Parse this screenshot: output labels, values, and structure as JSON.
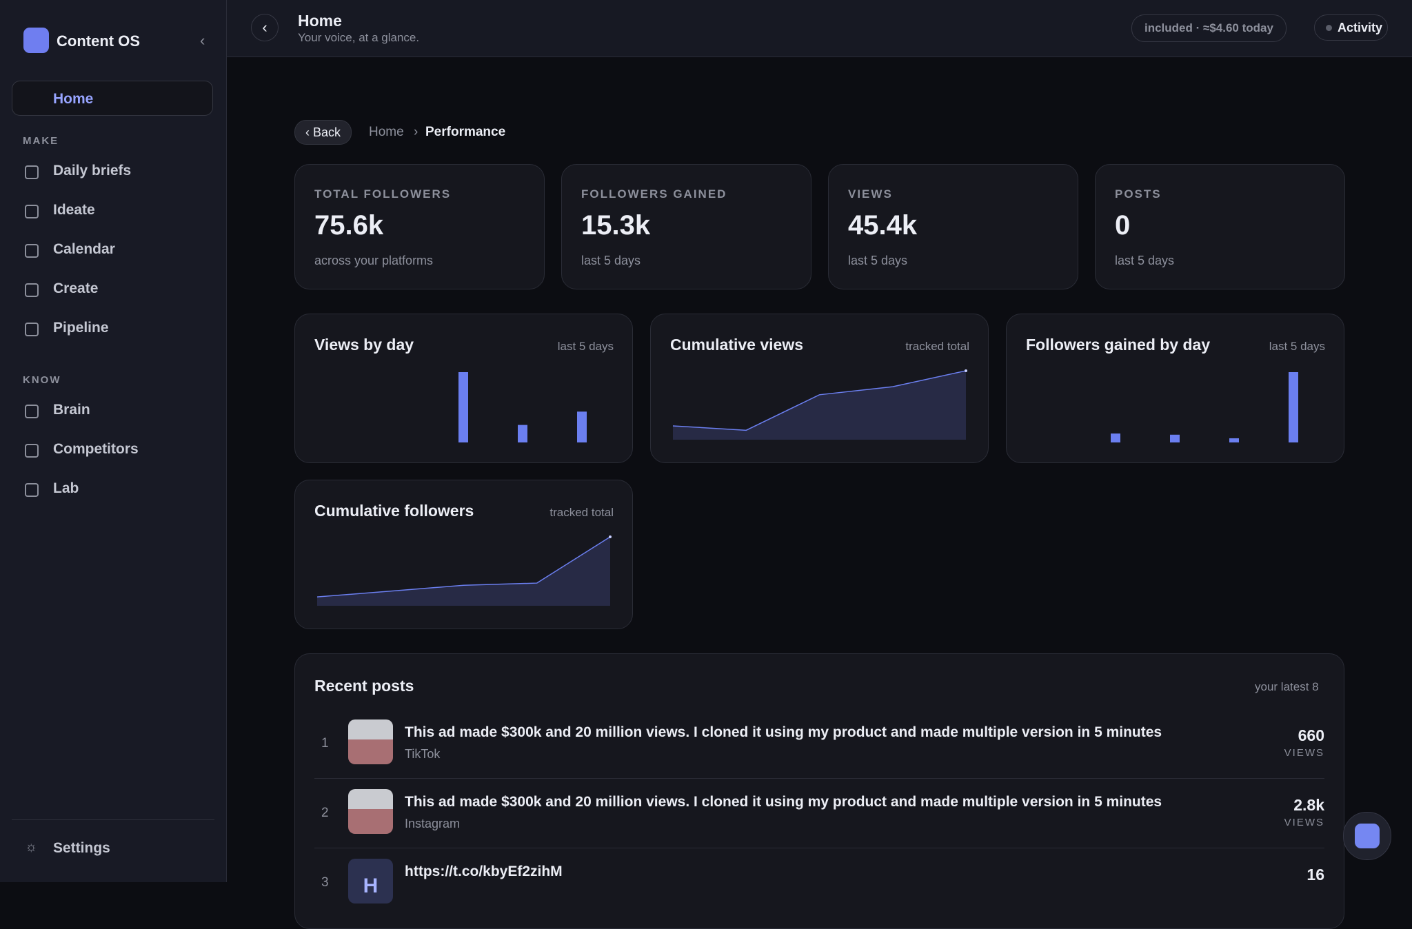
{
  "sidebar": {
    "brand": "Content OS",
    "home": "Home",
    "sections": [
      {
        "title": "MAKE",
        "items": [
          "Daily briefs",
          "Ideate",
          "Calendar",
          "Create",
          "Pipeline"
        ]
      },
      {
        "title": "KNOW",
        "items": [
          "Brain",
          "Competitors",
          "Lab"
        ]
      }
    ],
    "settings": "Settings"
  },
  "header": {
    "title": "Home",
    "subtitle": "Your voice, at a glance.",
    "usage": "included · ≈$4.60 today",
    "activity": "Activity"
  },
  "breadcrumb": {
    "back": "‹ Back",
    "home": "Home",
    "current": "Performance"
  },
  "stats": [
    {
      "label": "TOTAL FOLLOWERS",
      "value": "75.6k",
      "note": "across your platforms"
    },
    {
      "label": "FOLLOWERS GAINED",
      "value": "15.3k",
      "note": "last 5 days"
    },
    {
      "label": "VIEWS",
      "value": "45.4k",
      "note": "last 5 days"
    },
    {
      "label": "POSTS",
      "value": "0",
      "note": "last 5 days"
    }
  ],
  "chart_data": [
    {
      "type": "bar",
      "title": "Views by day",
      "note": "last 5 days",
      "color": "#6b7ff0",
      "values": [
        0,
        0,
        26900,
        6700,
        11800
      ]
    },
    {
      "type": "line",
      "title": "Cumulative views",
      "note": "tracked total",
      "color": "#6b7ff0",
      "values": [
        9100,
        6200,
        29600,
        34900,
        45400
      ]
    },
    {
      "type": "bar",
      "title": "Followers gained by day",
      "note": "last 5 days",
      "color": "#6b7ff0",
      "values": [
        0,
        1500,
        1300,
        700,
        11800
      ]
    },
    {
      "type": "line",
      "title": "Cumulative followers",
      "note": "tracked total",
      "color": "#6b7ff0",
      "values": [
        9700,
        16100,
        22500,
        24900,
        75600
      ]
    }
  ],
  "recent_posts": {
    "title": "Recent posts",
    "note": "your latest 8",
    "rows": [
      {
        "rank": "1",
        "title": "This ad made $300k and 20 million views. I cloned it using my product and made multiple version in 5 minutes",
        "platform": "TikTok",
        "value": "660",
        "unit": "VIEWS"
      },
      {
        "rank": "2",
        "title": "This ad made $300k and 20 million views. I cloned it using my product and made multiple version in 5 minutes",
        "platform": "Instagram",
        "value": "2.8k",
        "unit": "VIEWS"
      },
      {
        "rank": "3",
        "avatar": "H",
        "title": "https://t.co/kbyEf2zihM",
        "value": "16"
      }
    ]
  }
}
